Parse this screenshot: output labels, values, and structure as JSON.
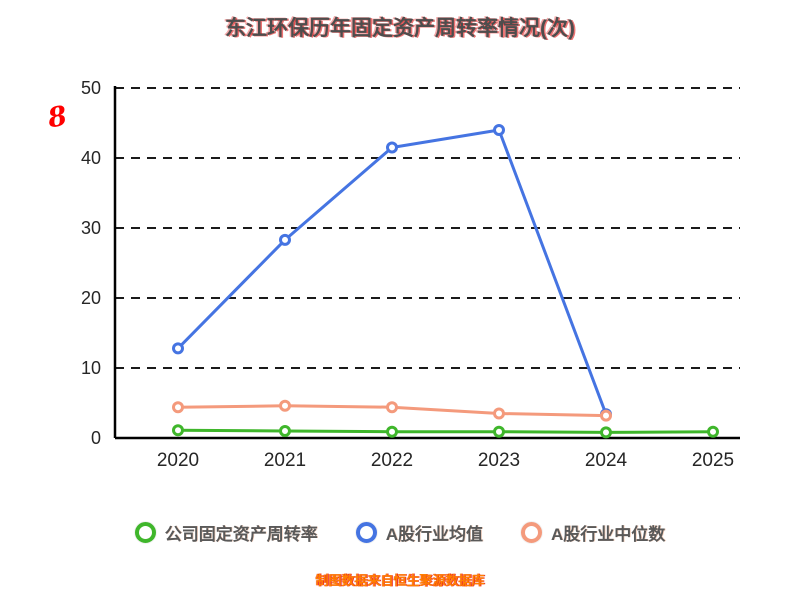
{
  "chart_data": {
    "type": "line",
    "title": "东江环保历年固定资产周转率情况(次)",
    "categories": [
      "2020",
      "2021",
      "2022",
      "2023",
      "2024",
      "2025"
    ],
    "series": [
      {
        "name": "公司固定资产周转率",
        "color": "#3fb62b",
        "values": [
          1.1,
          1.0,
          0.9,
          0.9,
          0.8,
          0.9
        ]
      },
      {
        "name": "A股行业均值",
        "color": "#4574e2",
        "values": [
          12.8,
          28.3,
          41.5,
          44.0,
          3.4,
          null
        ]
      },
      {
        "name": "A股行业中位数",
        "color": "#f49a7c",
        "values": [
          4.4,
          4.6,
          4.4,
          3.5,
          3.2,
          null
        ]
      }
    ],
    "ylim": [
      0,
      50
    ],
    "yticks": [
      0,
      10,
      20,
      30,
      40,
      50
    ],
    "grid": "dashed-horizontal",
    "legend_position": "bottom"
  },
  "annotation": {
    "text": "8",
    "color": "#ff0000"
  },
  "footer": {
    "text": "制图数据来自恒生聚源数据库"
  }
}
